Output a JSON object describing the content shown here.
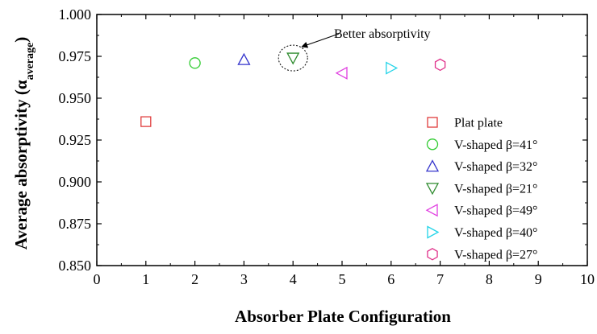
{
  "chart_data": {
    "type": "scatter",
    "xlabel": "Absorber Plate Configuration",
    "ylabel_main": "Average absorptivity (",
    "ylabel_symbol": "α",
    "ylabel_sub": "average",
    "ylabel_close": ")",
    "xlim": [
      0,
      10
    ],
    "ylim": [
      0.85,
      1.0
    ],
    "xticks": [
      "0",
      "1",
      "2",
      "3",
      "4",
      "5",
      "6",
      "7",
      "8",
      "9",
      "10"
    ],
    "yticks": [
      "0.850",
      "0.875",
      "0.900",
      "0.925",
      "0.950",
      "0.975",
      "1.000"
    ],
    "grid": false,
    "legend_position": "right",
    "annotation": {
      "text": "Better absorptivity",
      "target_series": 3
    },
    "series": [
      {
        "name": "Plat plate",
        "x": 1,
        "y": 0.936,
        "marker": "square",
        "color": "#e03c3c"
      },
      {
        "name": "V-shaped β=41°",
        "x": 2,
        "y": 0.971,
        "marker": "circle",
        "color": "#33cc33"
      },
      {
        "name": "V-shaped β=32°",
        "x": 3,
        "y": 0.973,
        "marker": "triangle-up",
        "color": "#3333cc"
      },
      {
        "name": "V-shaped β=21°",
        "x": 4,
        "y": 0.974,
        "marker": "triangle-down",
        "color": "#2e8b2e"
      },
      {
        "name": "V-shaped β=49°",
        "x": 5,
        "y": 0.965,
        "marker": "triangle-left",
        "color": "#e040e0"
      },
      {
        "name": "V-shaped β=40°",
        "x": 6,
        "y": 0.968,
        "marker": "triangle-right",
        "color": "#22d4e8"
      },
      {
        "name": "V-shaped β=27°",
        "x": 7,
        "y": 0.97,
        "marker": "hexagon",
        "color": "#e0308a"
      }
    ]
  }
}
